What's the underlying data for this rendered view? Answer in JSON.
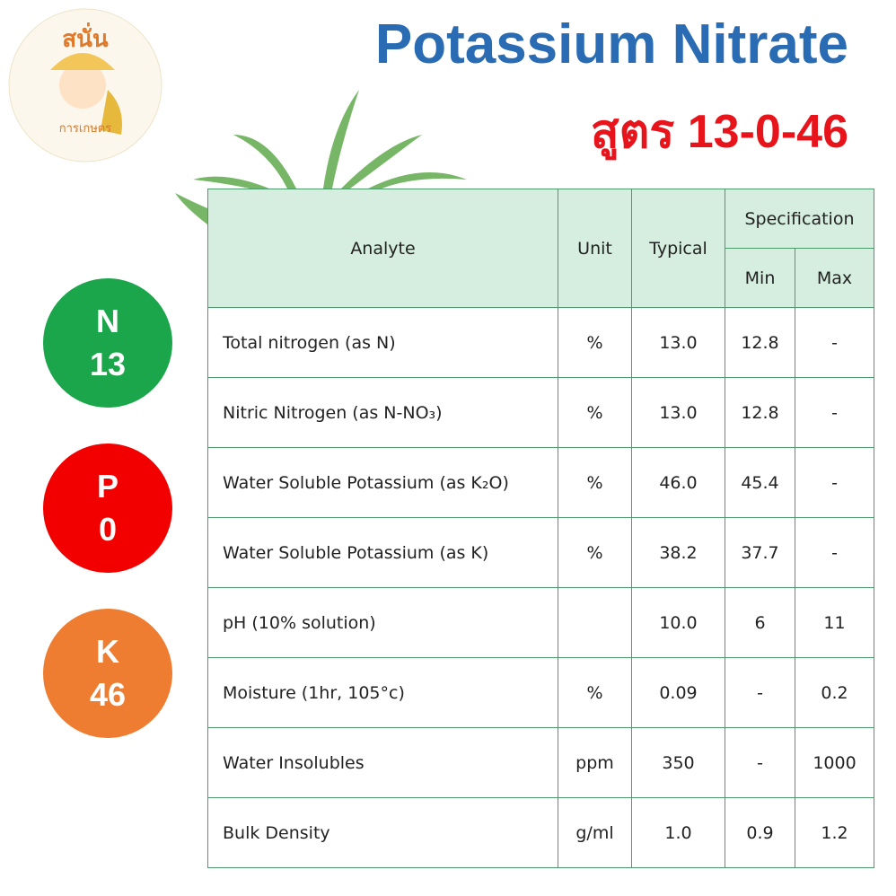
{
  "logo": {
    "name": "สนั่น",
    "subtitle": "การเกษตร"
  },
  "header": {
    "title": "Potassium Nitrate",
    "subtitle": "สูตร 13-0-46"
  },
  "nutrients": [
    {
      "letter": "N",
      "value": "13",
      "color": "#1ba64c"
    },
    {
      "letter": "P",
      "value": "0",
      "color": "#f20000"
    },
    {
      "letter": "K",
      "value": "46",
      "color": "#ee7d31"
    }
  ],
  "table": {
    "headers": {
      "analyte": "Analyte",
      "unit": "Unit",
      "typical": "Typical",
      "specification": "Specification",
      "min": "Min",
      "max": "Max"
    },
    "rows": [
      [
        "Total nitrogen (as N)",
        "%",
        "13.0",
        "12.8",
        "-"
      ],
      [
        "Nitric Nitrogen (as N-NO₃)",
        "%",
        "13.0",
        "12.8",
        "-"
      ],
      [
        "Water Soluble Potassium (as K₂O)",
        "%",
        "46.0",
        "45.4",
        "-"
      ],
      [
        "Water Soluble Potassium (as K)",
        "%",
        "38.2",
        "37.7",
        "-"
      ],
      [
        "pH (10% solution)",
        null,
        "10.0",
        "6",
        "11"
      ],
      [
        "Moisture (1hr, 105°c)",
        "%",
        "0.09",
        "-",
        "0.2"
      ],
      [
        "Water Insolubles",
        "ppm",
        "350",
        "-",
        "1000"
      ],
      [
        "Bulk Density",
        "g/ml",
        "1.0",
        "0.9",
        "1.2"
      ]
    ]
  }
}
